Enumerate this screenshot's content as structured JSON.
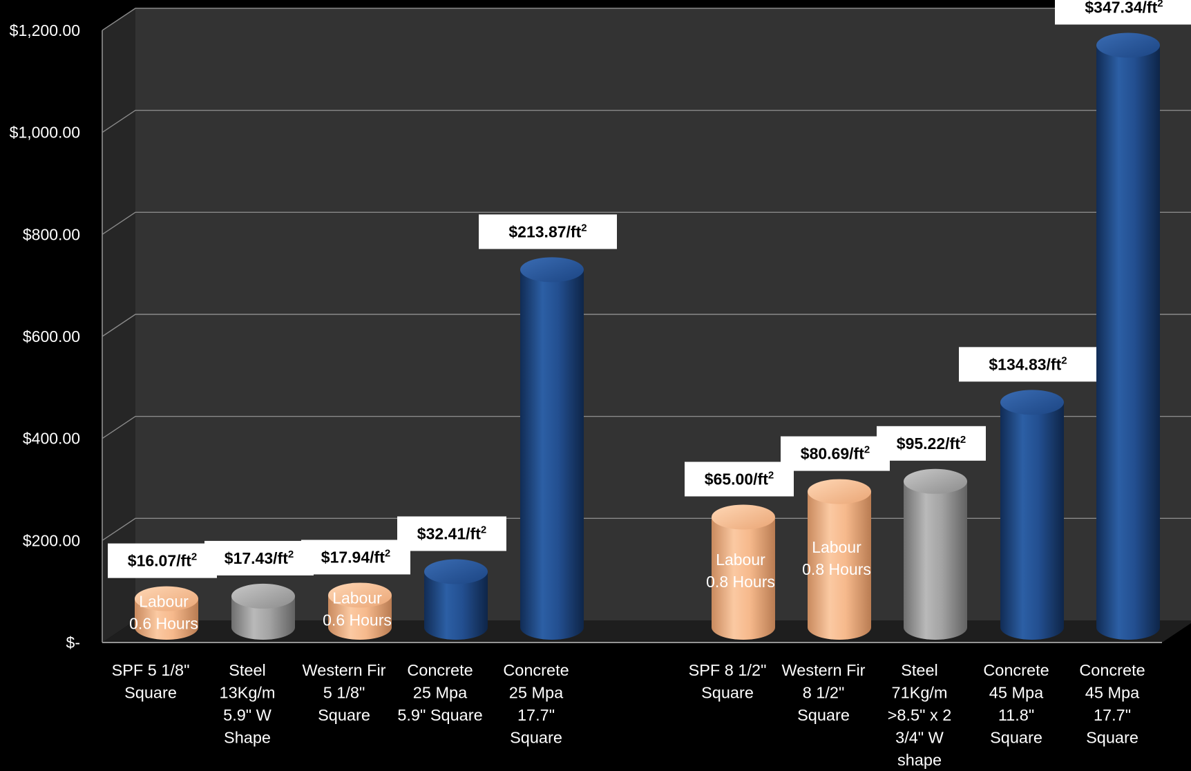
{
  "chart_data": {
    "type": "bar",
    "title": "",
    "xlabel": "",
    "ylabel": "",
    "ylim": [
      0,
      1200
    ],
    "y_ticks": [
      "$-",
      "$200.00",
      "$400.00",
      "$600.00",
      "$800.00",
      "$1,000.00",
      "$1,200.00"
    ],
    "y_tick_values": [
      0,
      200,
      400,
      600,
      800,
      1000,
      1200
    ],
    "grid": true,
    "style": "3d-cylinder",
    "colors": {
      "wood": "#f4b183",
      "steel": "#9a9a9a",
      "concrete": "#1f4e8f",
      "background": "#000000",
      "plot": "#2f2f2f"
    },
    "categories": [
      {
        "lines": [
          "SPF 5 1/8\"",
          "Square"
        ],
        "value": 75,
        "material": "wood",
        "callout": "$16.07/ft",
        "callout_sup": "2",
        "inner_label": [
          "Labour",
          "0.6 Hours"
        ]
      },
      {
        "lines": [
          "Steel",
          "13Kg/m",
          "5.9\" W",
          "Shape"
        ],
        "value": 80,
        "material": "steel",
        "callout": "$17.43/ft",
        "callout_sup": "2",
        "inner_label": []
      },
      {
        "lines": [
          "Western Fir",
          "5 1/8\"",
          "Square"
        ],
        "value": 82,
        "material": "wood",
        "callout": "$17.94/ft",
        "callout_sup": "2",
        "inner_label": [
          "Labour",
          "0.6 Hours"
        ]
      },
      {
        "lines": [
          "Concrete",
          "25 Mpa",
          "5.9\" Square"
        ],
        "value": 128,
        "material": "concrete",
        "callout": "$32.41/ft",
        "callout_sup": "2",
        "inner_label": []
      },
      {
        "lines": [
          "Concrete",
          "25 Mpa",
          "17.7\"",
          "Square"
        ],
        "value": 720,
        "material": "concrete",
        "callout": "$213.87/ft",
        "callout_sup": "2",
        "inner_label": []
      },
      {
        "lines": [
          "SPF 8 1/2\"",
          "Square"
        ],
        "value": 235,
        "material": "wood",
        "callout": "$65.00/ft",
        "callout_sup": "2",
        "inner_label": [
          "Labour",
          "0.8 Hours"
        ]
      },
      {
        "lines": [
          "Western Fir",
          "8 1/2\"",
          "Square"
        ],
        "value": 285,
        "material": "wood",
        "callout": "$80.69/ft",
        "callout_sup": "2",
        "inner_label": [
          "Labour",
          "0.8 Hours"
        ]
      },
      {
        "lines": [
          "Steel",
          "71Kg/m",
          ">8.5\" x 2",
          "3/4\" W",
          "shape"
        ],
        "value": 305,
        "material": "steel",
        "callout": "$95.22/ft",
        "callout_sup": "2",
        "inner_label": []
      },
      {
        "lines": [
          "Concrete",
          "45 Mpa",
          "11.8\"",
          "Square"
        ],
        "value": 460,
        "material": "concrete",
        "callout": "$134.83/ft",
        "callout_sup": "2",
        "inner_label": []
      },
      {
        "lines": [
          "Concrete",
          "45 Mpa",
          "17.7\"",
          "Square"
        ],
        "value": 1160,
        "material": "concrete",
        "callout": "$347.34/ft",
        "callout_sup": "2",
        "inner_label": []
      }
    ]
  }
}
